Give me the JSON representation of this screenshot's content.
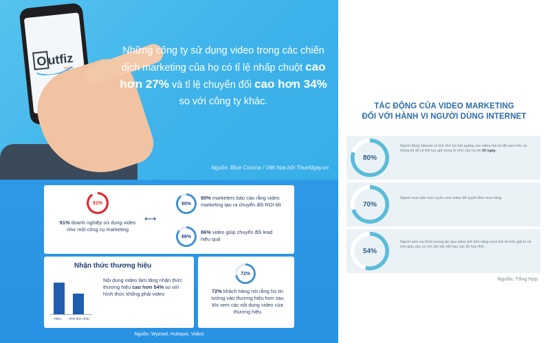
{
  "hero": {
    "logo_text": "utfiz",
    "logo_prefix": "O",
    "logo_sub": "media",
    "headline_part1": "Những công ty sử dụng video trong các chiến dịch marketing của họ có tỉ lệ nhấp chuột ",
    "headline_bold1": "cao hơn 27%",
    "headline_part2": " và tỉ lệ chuyển đổi ",
    "headline_bold2": "cao hơn 34%",
    "headline_part3": " so với công ty khác.",
    "source": "Nguồn: Blue Corona / Việt hóa bởi ThueNgay.vn"
  },
  "infographic": {
    "stat1": {
      "percent_label": "91%",
      "value": 91,
      "bold": "91%",
      "text": " doanh nghiệp sử dụng video như một công cụ marketing"
    },
    "arrow": "⟷",
    "stat2": {
      "percent_label": "90%",
      "value": 90,
      "bold": "90%",
      "text": " marketers báo cáo rằng video marketing tạo ra chuyển đổi ROI tốt"
    },
    "stat3": {
      "percent_label": "86%",
      "value": 86,
      "bold": "86%",
      "text": " video giúp chuyển đổi lead hiệu quả"
    },
    "awareness": {
      "title": "Nhận thức thương hiệu",
      "text_part1": "Nội dung video làm tăng nhận thức thương hiệu ",
      "text_bold": "cao hơn 54%",
      "text_part2": " so với hình thức không phải video",
      "bar_labels": [
        "Video",
        "Hình thức khác"
      ],
      "bar_values": [
        154,
        100
      ]
    },
    "stat4": {
      "percent_label": "72%",
      "value": 72,
      "bold": "72%",
      "text": " khách hàng nói rằng họ tin tưởng vào thương hiệu hơn sau khi xem các nội dung video của thương hiệu"
    },
    "source": "Nguồn: Wyzowl, Hubspot, Vidico"
  },
  "right_panel": {
    "title_line1": "TÁC ĐỘNG CỦA VIDEO MARKETING",
    "title_line2": "ĐỐI VỚI HÀNH VI NGƯỜI DÙNG INTERNET",
    "rows": [
      {
        "percent_label": "80%",
        "value": 80,
        "text": "Người dùng internet có thể nhớ lại một quảng cáo video mà họ đã xem trên và thông tin đó có thể lưu giữ trong trí nhớ của họ tới ",
        "bold": "30 ngày."
      },
      {
        "percent_label": "70%",
        "value": 70,
        "text": "Người mua sắm trực tuyến xem video để quyết định mua hàng",
        "bold": ""
      },
      {
        "percent_label": "54%",
        "value": 54,
        "text": "Người xem ưa thích tương tác qua video bởi khả năng vượt trội về tính giải trí và tính giáo dục so với các bài viết hay các đồ họa tĩnh",
        "bold": ""
      }
    ],
    "source": "Nguồn: Tổng hợp"
  },
  "colors": {
    "hero_bg": "#45b8ec",
    "info_bg": "#2a95e4",
    "ring_red": "#e5262d",
    "ring_blue": "#3f8fd8",
    "right_ring": "#5bbcd9",
    "title_blue": "#2a6ca8"
  }
}
